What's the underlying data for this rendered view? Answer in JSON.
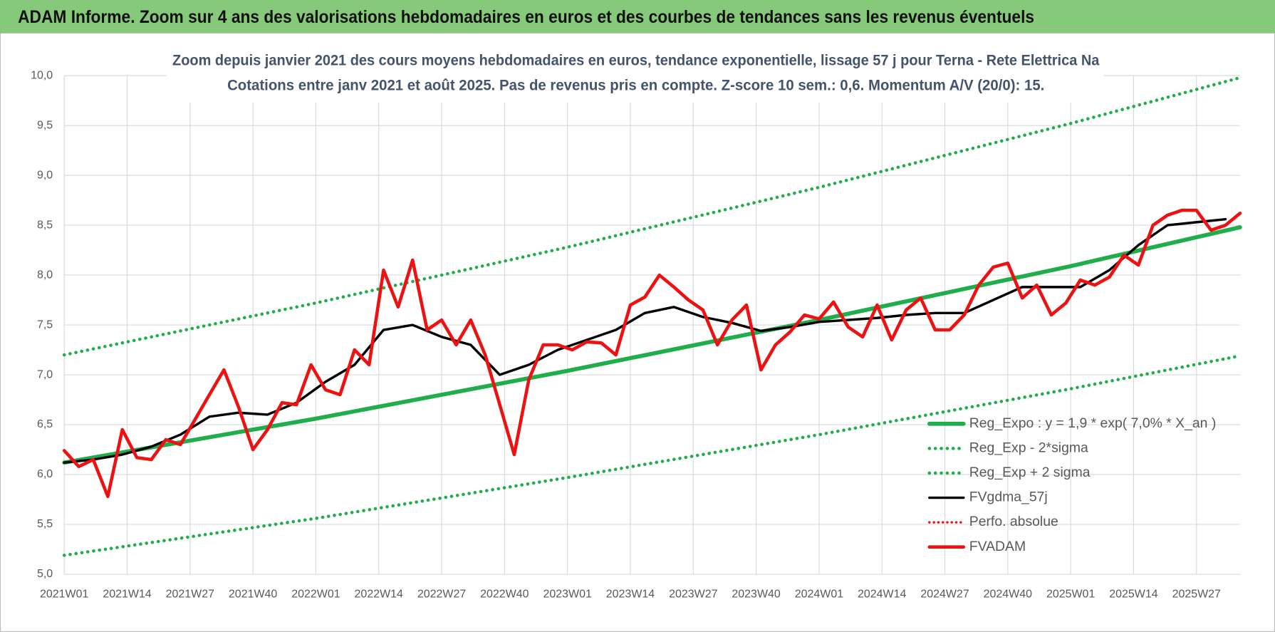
{
  "header": {
    "title": "ADAM Informe. Zoom sur 4 ans des valorisations hebdomadaires en euros et des courbes de tendances sans les revenus éventuels"
  },
  "chart_data": {
    "type": "line",
    "title": "Zoom depuis janvier 2021 des cours moyens hebdomadaires en euros, tendance exponentielle, lissage 57 j pour Terna - Rete Elettrica Na",
    "subtitle": "Cotations entre janv 2021 et août 2025.  Pas de revenus pris en compte. Z-score 10 sem.: 0,6. Momentum A/V (20/0): 15.",
    "xlim": [
      0,
      243
    ],
    "xticks": [
      {
        "value": 0,
        "label": "2021W01"
      },
      {
        "value": 13,
        "label": "2021W14"
      },
      {
        "value": 26,
        "label": "2021W27"
      },
      {
        "value": 39,
        "label": "2021W40"
      },
      {
        "value": 52,
        "label": "2022W01"
      },
      {
        "value": 65,
        "label": "2022W14"
      },
      {
        "value": 78,
        "label": "2022W27"
      },
      {
        "value": 91,
        "label": "2022W40"
      },
      {
        "value": 104,
        "label": "2023W01"
      },
      {
        "value": 117,
        "label": "2023W14"
      },
      {
        "value": 130,
        "label": "2023W27"
      },
      {
        "value": 143,
        "label": "2023W40"
      },
      {
        "value": 156,
        "label": "2024W01"
      },
      {
        "value": 169,
        "label": "2024W14"
      },
      {
        "value": 182,
        "label": "2024W27"
      },
      {
        "value": 195,
        "label": "2024W40"
      },
      {
        "value": 208,
        "label": "2025W01"
      },
      {
        "value": 221,
        "label": "2025W14"
      },
      {
        "value": 234,
        "label": "2025W27"
      }
    ],
    "ylim": [
      5,
      10
    ],
    "yticks": [
      {
        "value": 5,
        "label": "5,0"
      },
      {
        "value": 5.5,
        "label": "5,5"
      },
      {
        "value": 6,
        "label": "6,0"
      },
      {
        "value": 6.5,
        "label": "6,5"
      },
      {
        "value": 7,
        "label": "7,0"
      },
      {
        "value": 7.5,
        "label": "7,5"
      },
      {
        "value": 8,
        "label": "8,0"
      },
      {
        "value": 8.5,
        "label": "8,5"
      },
      {
        "value": 9,
        "label": "9,0"
      },
      {
        "value": 9.5,
        "label": "9,5"
      },
      {
        "value": 10,
        "label": "10,0"
      }
    ],
    "grid": true,
    "legend": "lower right",
    "series": [
      {
        "name": "Reg_Expo : y = 1,9 * exp( 7,0% *  X_an )",
        "color": "#1fae4b",
        "width": 5,
        "dash": "solid",
        "x": [
          0,
          52,
          104,
          156,
          208,
          243
        ],
        "values": [
          6.12,
          6.56,
          7.04,
          7.55,
          8.09,
          8.48
        ]
      },
      {
        "name": "Reg_Exp - 2*sigma",
        "color": "#1fae4b",
        "width": 4,
        "dash": "dotted",
        "x": [
          0,
          52,
          104,
          156,
          208,
          243
        ],
        "values": [
          5.19,
          5.56,
          5.97,
          6.4,
          6.86,
          7.19
        ]
      },
      {
        "name": "Reg_Exp + 2 sigma",
        "color": "#1fae4b",
        "width": 4,
        "dash": "dotted",
        "x": [
          0,
          52,
          104,
          156,
          208,
          243
        ],
        "values": [
          7.2,
          7.72,
          8.28,
          8.88,
          9.52,
          9.98
        ]
      },
      {
        "name": "FVgdma_57j",
        "color": "#000000",
        "width": 3,
        "dash": "solid",
        "x": [
          0,
          6,
          12,
          18,
          24,
          30,
          36,
          42,
          48,
          54,
          60,
          66,
          72,
          78,
          84,
          90,
          96,
          102,
          108,
          114,
          120,
          126,
          132,
          138,
          144,
          150,
          156,
          162,
          168,
          174,
          180,
          186,
          192,
          198,
          204,
          210,
          216,
          222,
          228,
          234,
          240
        ],
        "values": [
          6.12,
          6.15,
          6.2,
          6.28,
          6.4,
          6.58,
          6.62,
          6.6,
          6.72,
          6.93,
          7.1,
          7.45,
          7.5,
          7.38,
          7.3,
          7.0,
          7.1,
          7.25,
          7.35,
          7.45,
          7.62,
          7.68,
          7.58,
          7.52,
          7.44,
          7.48,
          7.53,
          7.55,
          7.57,
          7.6,
          7.62,
          7.62,
          7.75,
          7.88,
          7.88,
          7.88,
          8.05,
          8.3,
          8.5,
          8.53,
          8.56
        ]
      },
      {
        "name": "Perfo. absolue",
        "color": "#e8171a",
        "width": 3,
        "dash": "dotted"
      },
      {
        "name": "FVADAM",
        "color": "#ee1111",
        "width": 4,
        "dash": "solid",
        "x": [
          0,
          3,
          6,
          9,
          12,
          15,
          18,
          21,
          24,
          27,
          30,
          33,
          36,
          39,
          42,
          45,
          48,
          51,
          54,
          57,
          60,
          63,
          66,
          69,
          72,
          75,
          78,
          81,
          84,
          87,
          90,
          93,
          96,
          99,
          102,
          105,
          108,
          111,
          114,
          117,
          120,
          123,
          126,
          129,
          132,
          135,
          138,
          141,
          144,
          147,
          150,
          153,
          156,
          159,
          162,
          165,
          168,
          171,
          174,
          177,
          180,
          183,
          186,
          189,
          192,
          195,
          198,
          201,
          204,
          207,
          210,
          213,
          216,
          219,
          222,
          225,
          228,
          231,
          234,
          237,
          240,
          243
        ],
        "values": [
          6.24,
          6.08,
          6.15,
          5.78,
          6.45,
          6.17,
          6.15,
          6.35,
          6.3,
          6.55,
          6.8,
          7.05,
          6.68,
          6.25,
          6.45,
          6.72,
          6.7,
          7.1,
          6.85,
          6.8,
          7.25,
          7.1,
          8.05,
          7.68,
          8.15,
          7.45,
          7.55,
          7.3,
          7.55,
          7.2,
          6.7,
          6.2,
          6.95,
          7.3,
          7.3,
          7.25,
          7.33,
          7.32,
          7.2,
          7.7,
          7.78,
          8.0,
          7.88,
          7.75,
          7.65,
          7.3,
          7.55,
          7.7,
          7.05,
          7.3,
          7.43,
          7.6,
          7.56,
          7.73,
          7.48,
          7.38,
          7.7,
          7.35,
          7.65,
          7.77,
          7.45,
          7.45,
          7.6,
          7.9,
          8.08,
          8.12,
          7.77,
          7.9,
          7.6,
          7.72,
          7.95,
          7.9,
          7.98,
          8.2,
          8.1,
          8.5,
          8.6,
          8.65,
          8.65,
          8.45,
          8.5,
          8.62
        ]
      }
    ]
  }
}
